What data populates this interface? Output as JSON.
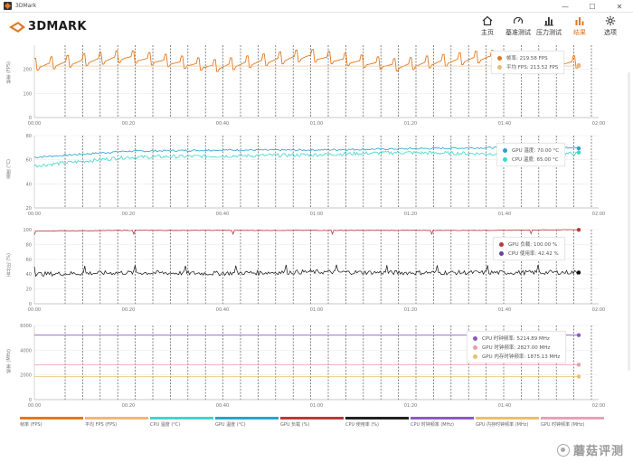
{
  "window": {
    "title": "3DMark",
    "minimize": "—",
    "maximize": "☐",
    "close": "✕"
  },
  "header": {
    "logo_text": "3DMARK",
    "nav": [
      {
        "label": "主页",
        "icon": "home-icon"
      },
      {
        "label": "基准测试",
        "icon": "gauge-icon"
      },
      {
        "label": "压力测试",
        "icon": "bar-chart-icon"
      },
      {
        "label": "结果",
        "icon": "results-icon",
        "active": true
      },
      {
        "label": "选项",
        "icon": "gear-icon"
      }
    ],
    "accent_color": "#e07820"
  },
  "x_ticks": [
    "00:00",
    "00:20",
    "00:40",
    "01:00",
    "01:20",
    "01:40",
    "02:00"
  ],
  "charts": [
    {
      "id": "fps",
      "ylabel": "帧率 (FPS)",
      "y_ticks": [
        "200",
        "100",
        "0"
      ],
      "legend": [
        {
          "label": "帧率: 219.58 FPS",
          "color": "#e07820"
        },
        {
          "label": "平均 FPS: 213.52 FPS",
          "color": "#f0b77a"
        }
      ]
    },
    {
      "id": "temp",
      "ylabel": "温度 (°C)",
      "y_ticks": [
        "80",
        "60",
        "40",
        "20"
      ],
      "legend": [
        {
          "label": "GPU 温度: 70.00 °C",
          "color": "#2aa3c9"
        },
        {
          "label": "CPU 温度: 65.00 °C",
          "color": "#3fd7c7"
        }
      ]
    },
    {
      "id": "util",
      "ylabel": "百分比 (%)",
      "y_ticks": [
        "100",
        "80",
        "60",
        "40",
        "20",
        "0"
      ],
      "legend": [
        {
          "label": "GPU 负载: 100.00 %",
          "color": "#b83a3a"
        },
        {
          "label": "CPU 使用率: 42.42 %",
          "color": "#6a3fa0"
        }
      ]
    },
    {
      "id": "clock",
      "ylabel": "频率 (MHz)",
      "y_ticks": [
        "6000",
        "4000",
        "2000",
        "0"
      ],
      "legend": [
        {
          "label": "CPU 时钟频率: 5214.89 MHz",
          "color": "#8a5cc0"
        },
        {
          "label": "GPU 时钟频率: 2827.00 MHz",
          "color": "#e8a0a8"
        },
        {
          "label": "GPU 内存时钟频率: 1875.13 MHz",
          "color": "#e8c070"
        }
      ]
    }
  ],
  "chart_data": [
    {
      "type": "line",
      "title": "",
      "ylabel": "帧率 (FPS)",
      "x": [
        "00:00",
        "00:20",
        "00:40",
        "01:00",
        "01:20",
        "01:40",
        "02:00"
      ],
      "ylim": [
        0,
        300
      ],
      "series": [
        {
          "name": "帧率",
          "values": [
            210,
            245,
            205,
            250,
            208,
            245,
            219.58
          ]
        },
        {
          "name": "平均 FPS",
          "values": [
            213.52,
            213.52,
            213.52,
            213.52,
            213.52,
            213.52,
            213.52
          ]
        }
      ]
    },
    {
      "type": "line",
      "title": "",
      "ylabel": "温度 (°C)",
      "x": [
        "00:00",
        "00:20",
        "00:40",
        "01:00",
        "01:20",
        "01:40",
        "02:00"
      ],
      "ylim": [
        20,
        80
      ],
      "series": [
        {
          "name": "GPU 温度",
          "values": [
            62,
            67,
            68,
            68,
            69,
            70,
            70
          ]
        },
        {
          "name": "CPU 温度",
          "values": [
            55,
            62,
            63,
            64,
            66,
            65,
            65
          ]
        }
      ]
    },
    {
      "type": "line",
      "title": "",
      "ylabel": "百分比 (%)",
      "x": [
        "00:00",
        "00:20",
        "00:40",
        "01:00",
        "01:20",
        "01:40",
        "02:00"
      ],
      "ylim": [
        0,
        100
      ],
      "series": [
        {
          "name": "GPU 负载",
          "values": [
            98,
            99,
            99,
            99,
            99,
            99,
            100
          ]
        },
        {
          "name": "CPU 使用率",
          "values": [
            40,
            42,
            41,
            43,
            42,
            42,
            42.42
          ]
        }
      ]
    },
    {
      "type": "line",
      "title": "",
      "ylabel": "频率 (MHz)",
      "x": [
        "00:00",
        "00:20",
        "00:40",
        "01:00",
        "01:20",
        "01:40",
        "02:00"
      ],
      "ylim": [
        0,
        6000
      ],
      "series": [
        {
          "name": "CPU 时钟频率",
          "values": [
            5214,
            5214,
            5214,
            5214,
            5214,
            5214,
            5214.89
          ]
        },
        {
          "name": "GPU 时钟频率",
          "values": [
            2827,
            2827,
            2827,
            2827,
            2827,
            2827,
            2827
          ]
        },
        {
          "name": "GPU 内存时钟频率",
          "values": [
            1875,
            1875,
            1875,
            1875,
            1875,
            1875,
            1875.13
          ]
        }
      ]
    }
  ],
  "bottom_legend": [
    {
      "label": "帧率 (FPS)",
      "color": "#e07820"
    },
    {
      "label": "平均 FPS (FPS)",
      "color": "#f0b77a"
    },
    {
      "label": "CPU 温度 (°C)",
      "color": "#3fd7c7"
    },
    {
      "label": "GPU 温度 (°C)",
      "color": "#2aa3c9"
    },
    {
      "label": "GPU 负载 (%)",
      "color": "#b83a3a"
    },
    {
      "label": "CPU 使用率 (%)",
      "color": "#222222"
    },
    {
      "label": "CPU 时钟频率 (MHz)",
      "color": "#8a5cc0"
    },
    {
      "label": "GPU 内存时钟频率 (MHz)",
      "color": "#e8c070"
    },
    {
      "label": "GPU 时钟频率 (MHz)",
      "color": "#e8a0b8"
    }
  ],
  "watermark": "蘑菇评测"
}
